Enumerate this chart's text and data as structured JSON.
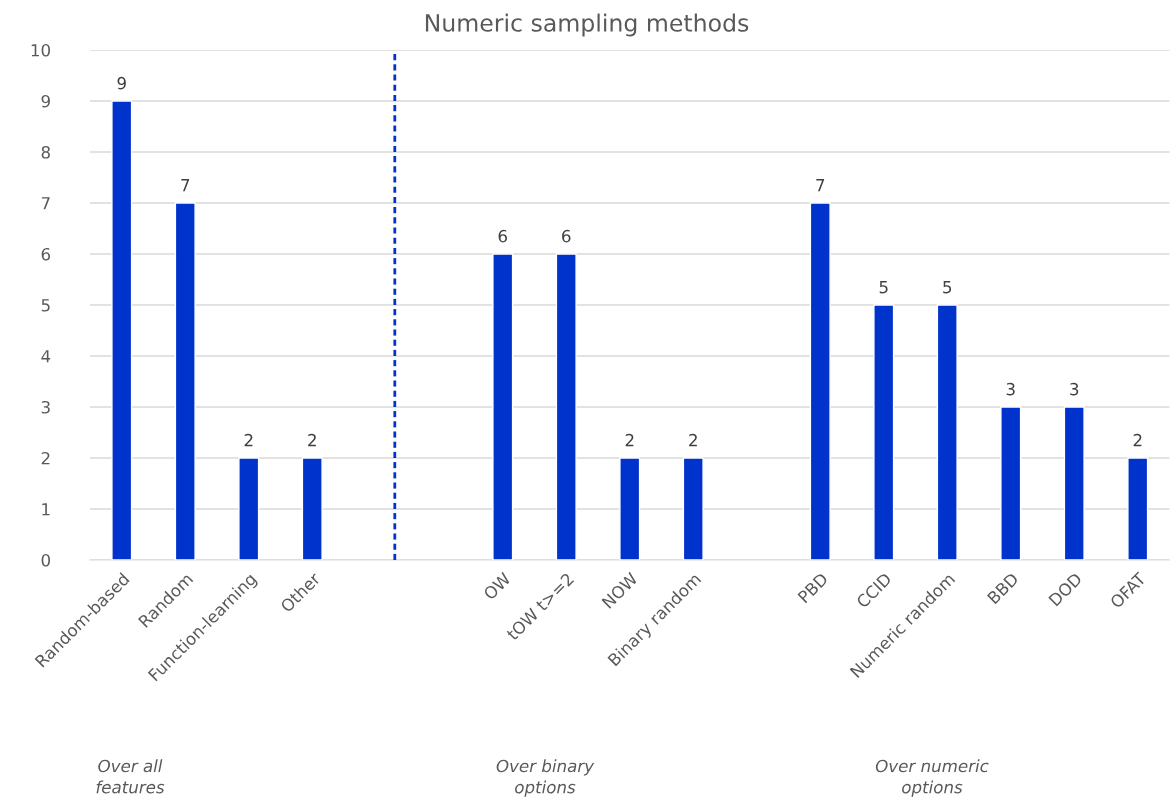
{
  "chart_data": {
    "type": "bar",
    "title": "Numeric sampling methods",
    "categories": [
      "Random-based",
      "Random",
      "Function-learning",
      "Other",
      null,
      null,
      "OW",
      "tOW t>=2",
      "NOW",
      "Binary random",
      null,
      "PBD",
      "CCID",
      "Numeric random",
      "BBD",
      "DOD",
      "OFAT"
    ],
    "values": [
      9,
      7,
      2,
      2,
      null,
      null,
      6,
      6,
      2,
      2,
      null,
      7,
      5,
      5,
      3,
      3,
      2
    ],
    "color": "#0033cc",
    "ylim": [
      0,
      10
    ],
    "yticks": [
      0,
      1,
      2,
      3,
      4,
      5,
      6,
      7,
      8,
      9,
      10
    ],
    "grid": "y",
    "data_labels": true,
    "annotations": [
      "Over all\nfeatures",
      "Over binary\noptions",
      "Over numeric\noptions"
    ]
  }
}
